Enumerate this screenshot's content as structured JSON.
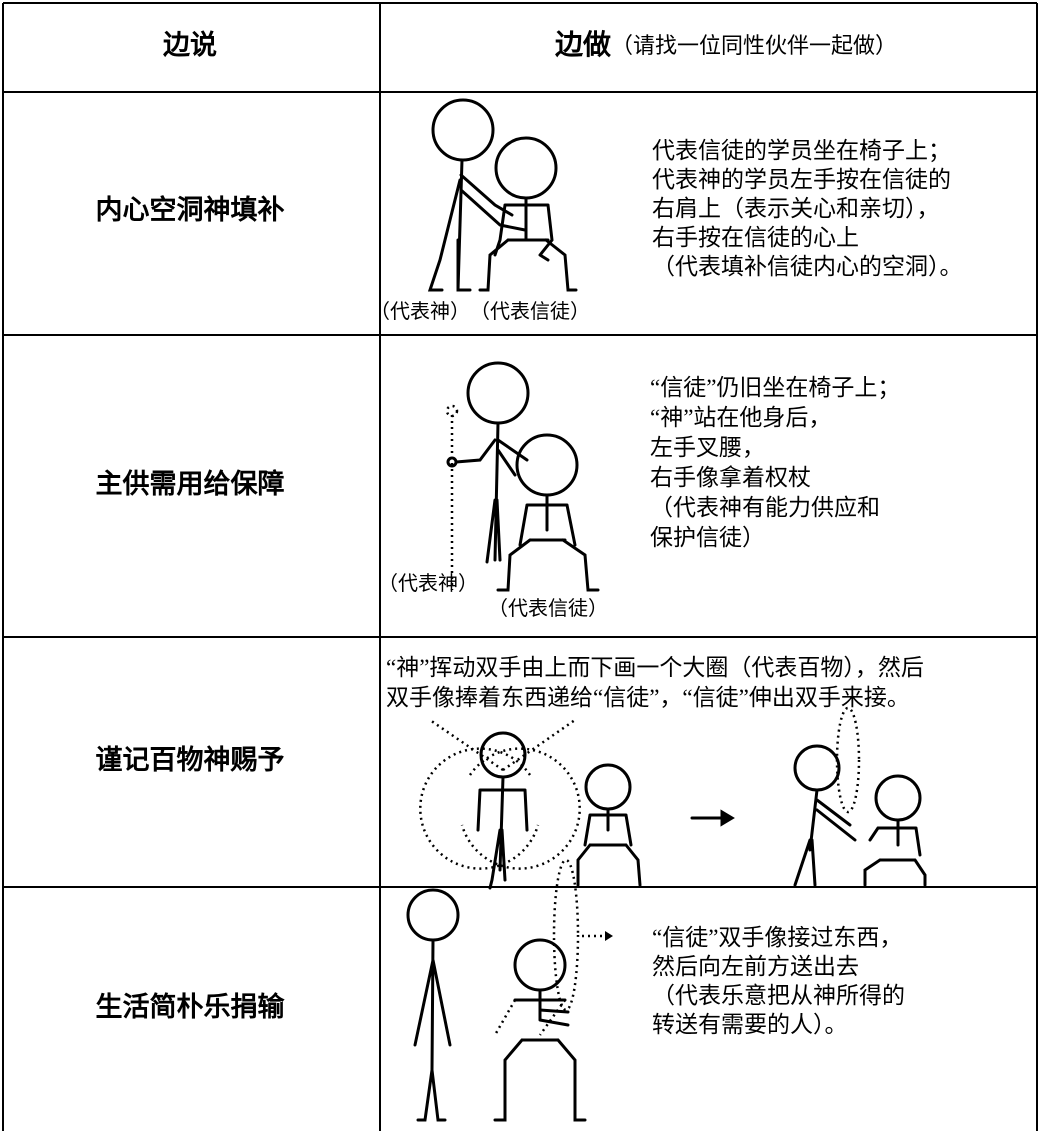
{
  "header": {
    "left": "边说",
    "right_main": "边做",
    "right_note": "（请找一位同性伙伴一起做）"
  },
  "rows": [
    {
      "label": "内心空洞神填补",
      "lines": [
        "代表信徒的学员坐在椅子上；",
        "代表神的学员左手按在信徒的",
        "右肩上（表示关心和亲切），",
        "右手按在信徒的心上",
        "（代表填补信徒内心的空洞）。"
      ],
      "captions": [
        "（代表神）",
        "（代表信徒）"
      ]
    },
    {
      "label": "主供需用给保障",
      "lines": [
        "“信徒”仍旧坐在椅子上；",
        "“神”站在他身后，",
        "左手叉腰，",
        "右手像拿着权杖",
        "（代表神有能力供应和",
        "保护信徒）"
      ],
      "captions": [
        "（代表神）",
        "（代表信徒）"
      ]
    },
    {
      "label": "谨记百物神赐予",
      "lines": [
        "“神”挥动双手由上而下画一个大圈（代表百物），然后",
        "双手像捧着东西递给“信徒”，“信徒”伸出双手来接。"
      ]
    },
    {
      "label": "生活简朴乐捐输",
      "lines": [
        "“信徒”双手像接过东西，",
        "然后向左前方送出去",
        "（代表乐意把从神所得的",
        "转送有需要的人）。"
      ]
    }
  ]
}
